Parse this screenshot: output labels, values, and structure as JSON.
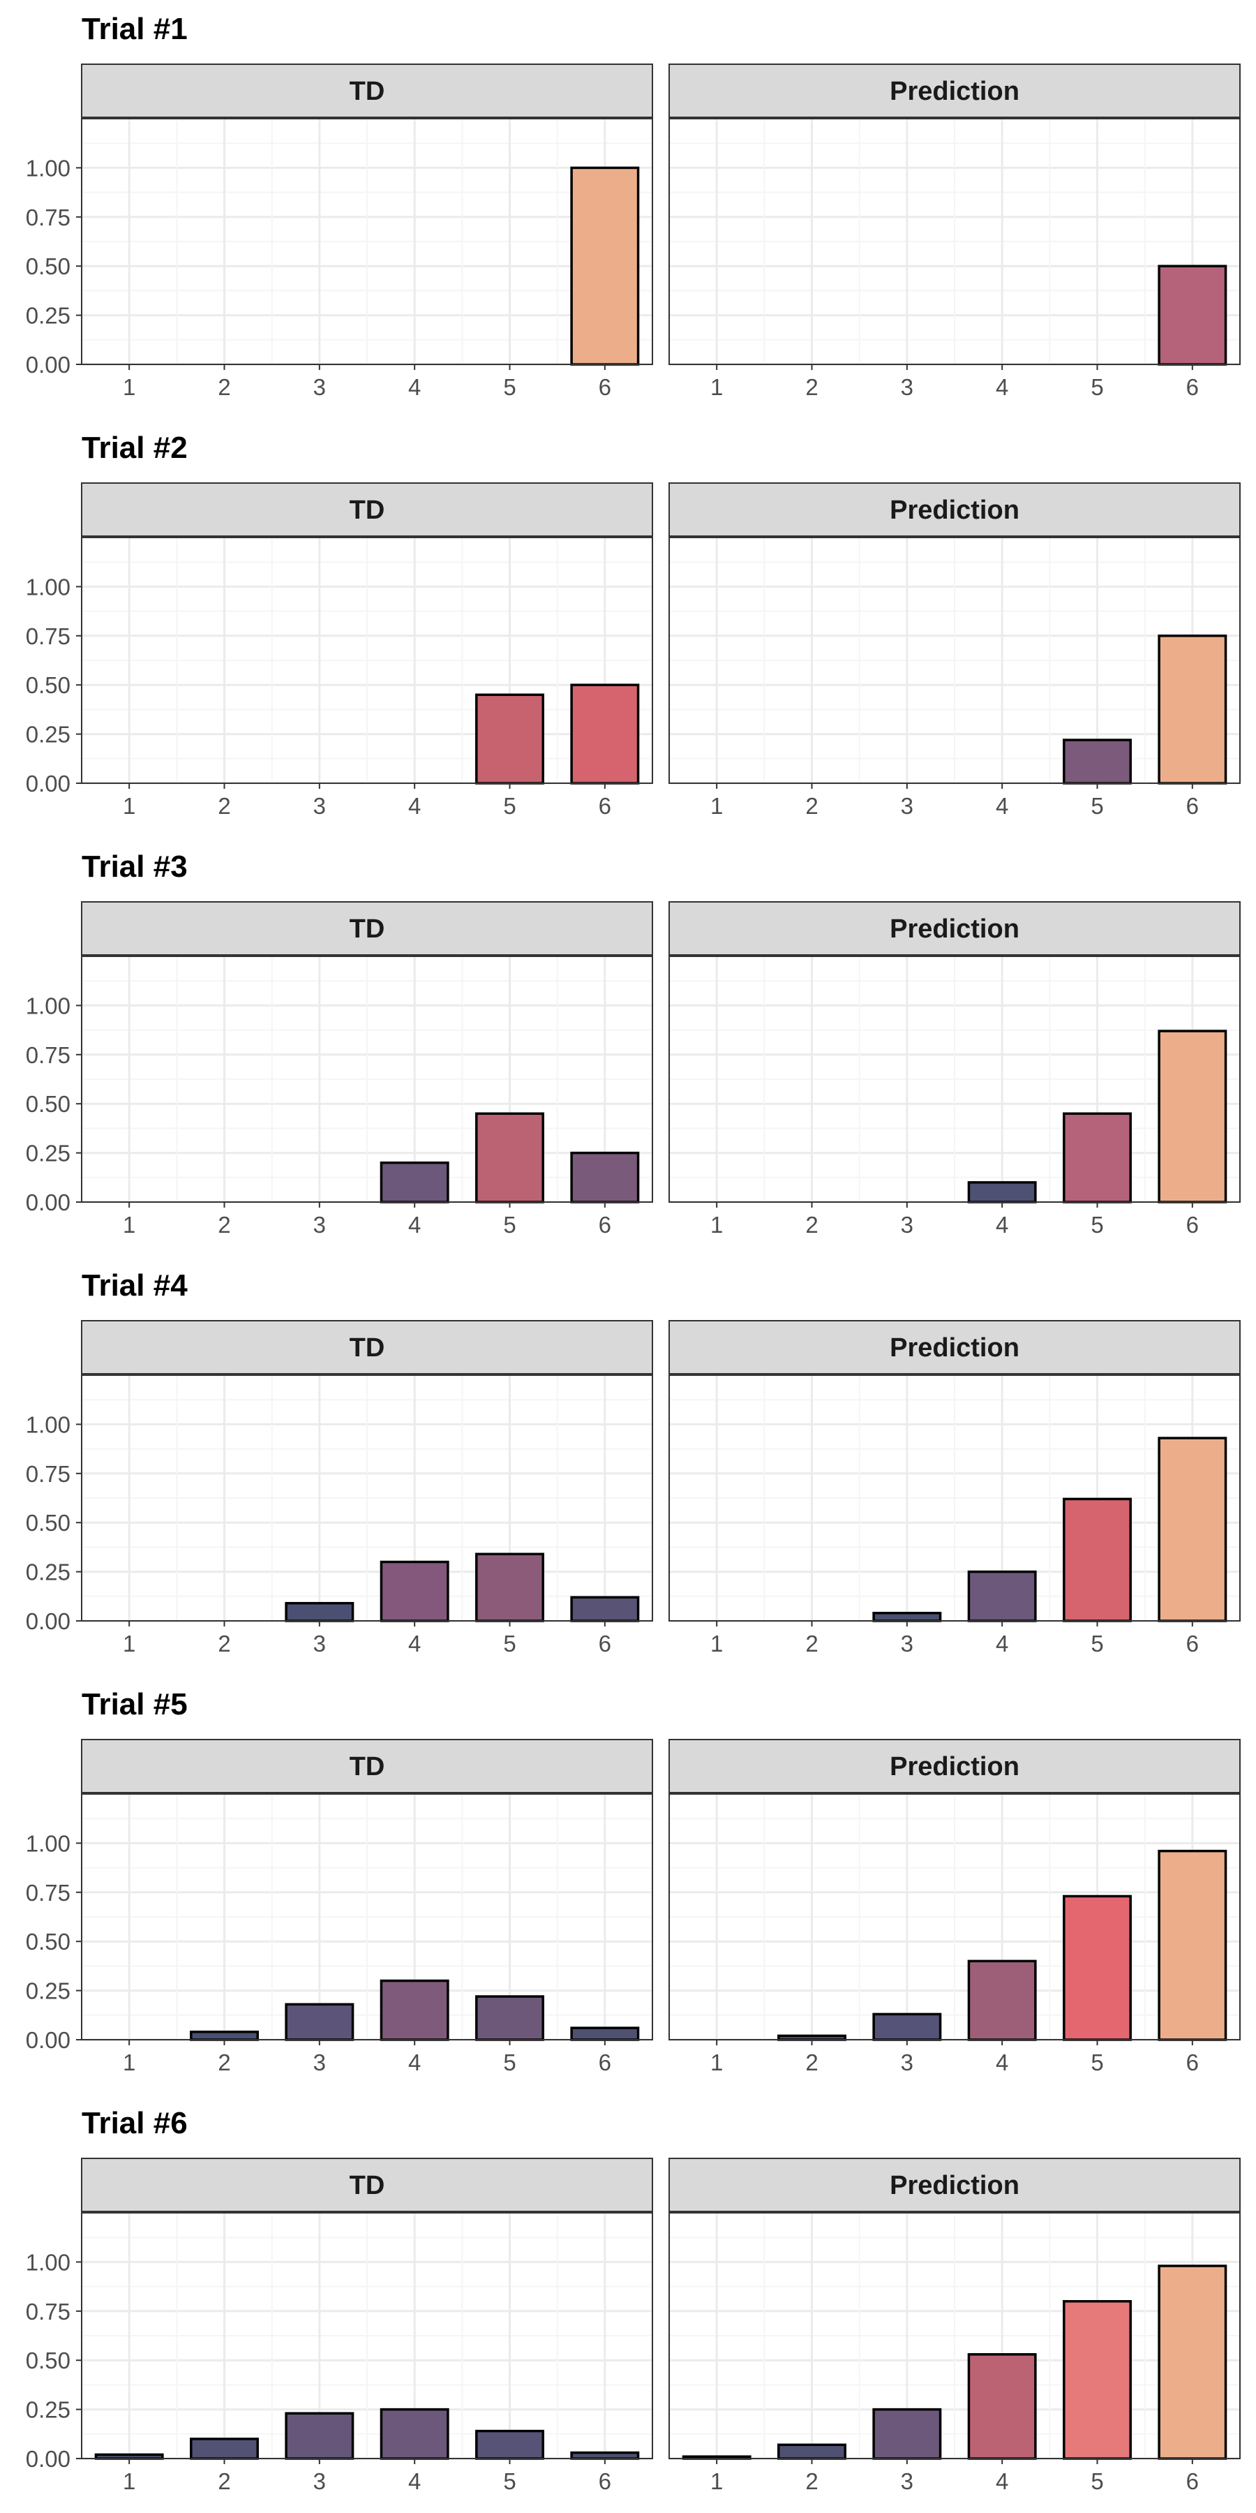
{
  "chart_data": [
    {
      "type": "bar",
      "title": "Trial #1",
      "categories": [
        "1",
        "2",
        "3",
        "4",
        "5",
        "6"
      ],
      "ylim": [
        0,
        1.25
      ],
      "yticks": [
        "0.00",
        "0.25",
        "0.50",
        "0.75",
        "1.00"
      ],
      "grid": true,
      "panels": [
        {
          "label": "TD",
          "values": [
            0,
            0,
            0,
            0,
            0,
            1.0
          ],
          "colors": [
            "#4a5070",
            "#4a5070",
            "#4a5070",
            "#4a5070",
            "#4a5070",
            "#ecae8a"
          ]
        },
        {
          "label": "Prediction",
          "values": [
            0,
            0,
            0,
            0,
            0,
            0.5
          ],
          "colors": [
            "#4a5070",
            "#4a5070",
            "#4a5070",
            "#4a5070",
            "#4a5070",
            "#b5637b"
          ]
        }
      ]
    },
    {
      "type": "bar",
      "title": "Trial #2",
      "categories": [
        "1",
        "2",
        "3",
        "4",
        "5",
        "6"
      ],
      "ylim": [
        0,
        1.25
      ],
      "yticks": [
        "0.00",
        "0.25",
        "0.50",
        "0.75",
        "1.00"
      ],
      "grid": true,
      "panels": [
        {
          "label": "TD",
          "values": [
            0,
            0,
            0,
            0,
            0.45,
            0.5
          ],
          "colors": [
            "#4a5070",
            "#4a5070",
            "#4a5070",
            "#4a5070",
            "#c7636f",
            "#d5646e"
          ]
        },
        {
          "label": "Prediction",
          "values": [
            0,
            0,
            0,
            0,
            0.22,
            0.75
          ],
          "colors": [
            "#4a5070",
            "#4a5070",
            "#4a5070",
            "#4a5070",
            "#7c5a7c",
            "#ecae8a"
          ]
        }
      ]
    },
    {
      "type": "bar",
      "title": "Trial #3",
      "categories": [
        "1",
        "2",
        "3",
        "4",
        "5",
        "6"
      ],
      "ylim": [
        0,
        1.25
      ],
      "yticks": [
        "0.00",
        "0.25",
        "0.50",
        "0.75",
        "1.00"
      ],
      "grid": true,
      "panels": [
        {
          "label": "TD",
          "values": [
            0,
            0,
            0,
            0.2,
            0.45,
            0.25
          ],
          "colors": [
            "#4a5070",
            "#4a5070",
            "#4a5070",
            "#6b587a",
            "#bc6373",
            "#7a5a7a"
          ]
        },
        {
          "label": "Prediction",
          "values": [
            0,
            0,
            0,
            0.1,
            0.45,
            0.87
          ],
          "colors": [
            "#4a5070",
            "#4a5070",
            "#4a5070",
            "#4f5173",
            "#b5637b",
            "#ecae8a"
          ]
        }
      ]
    },
    {
      "type": "bar",
      "title": "Trial #4",
      "categories": [
        "1",
        "2",
        "3",
        "4",
        "5",
        "6"
      ],
      "ylim": [
        0,
        1.25
      ],
      "yticks": [
        "0.00",
        "0.25",
        "0.50",
        "0.75",
        "1.00"
      ],
      "grid": true,
      "panels": [
        {
          "label": "TD",
          "values": [
            0,
            0,
            0.09,
            0.3,
            0.34,
            0.12
          ],
          "colors": [
            "#4a5070",
            "#4a5070",
            "#4b5073",
            "#83587c",
            "#8d5b7a",
            "#595475"
          ]
        },
        {
          "label": "Prediction",
          "values": [
            0,
            0,
            0.04,
            0.25,
            0.62,
            0.93
          ],
          "colors": [
            "#4a5070",
            "#4a5070",
            "#4a5070",
            "#6b587a",
            "#d5646e",
            "#ecae8a"
          ]
        }
      ]
    },
    {
      "type": "bar",
      "title": "Trial #5",
      "categories": [
        "1",
        "2",
        "3",
        "4",
        "5",
        "6"
      ],
      "ylim": [
        0,
        1.25
      ],
      "yticks": [
        "0.00",
        "0.25",
        "0.50",
        "0.75",
        "1.00"
      ],
      "grid": true,
      "panels": [
        {
          "label": "TD",
          "values": [
            0,
            0.04,
            0.18,
            0.3,
            0.22,
            0.06
          ],
          "colors": [
            "#4a5070",
            "#4a5070",
            "#5d5479",
            "#7f5a7a",
            "#6d587a",
            "#4f5173"
          ]
        },
        {
          "label": "Prediction",
          "values": [
            0,
            0.02,
            0.13,
            0.4,
            0.73,
            0.96
          ],
          "colors": [
            "#4a5070",
            "#4a5070",
            "#555377",
            "#9d5f77",
            "#e4676f",
            "#ecae8a"
          ]
        }
      ]
    },
    {
      "type": "bar",
      "title": "Trial #6",
      "categories": [
        "1",
        "2",
        "3",
        "4",
        "5",
        "6"
      ],
      "ylim": [
        0,
        1.25
      ],
      "yticks": [
        "0.00",
        "0.25",
        "0.50",
        "0.75",
        "1.00"
      ],
      "grid": true,
      "panels": [
        {
          "label": "TD",
          "values": [
            0.02,
            0.1,
            0.23,
            0.25,
            0.14,
            0.03
          ],
          "colors": [
            "#4a5070",
            "#515274",
            "#65567a",
            "#6b587a",
            "#565377",
            "#4a5070"
          ]
        },
        {
          "label": "Prediction",
          "values": [
            0.01,
            0.07,
            0.25,
            0.53,
            0.8,
            0.98
          ],
          "colors": [
            "#4a5070",
            "#4f5173",
            "#6b587a",
            "#bc6373",
            "#e6797a",
            "#ecae8a"
          ]
        }
      ]
    }
  ],
  "style": {
    "strip_fill": "#d9d9d9",
    "strip_border": "#333333",
    "panel_border": "#333333",
    "grid_major": "#ebebeb",
    "grid_minor": "#f5f5f5",
    "bar_outline": "#000000",
    "tick_text": "#4d4d4d"
  }
}
